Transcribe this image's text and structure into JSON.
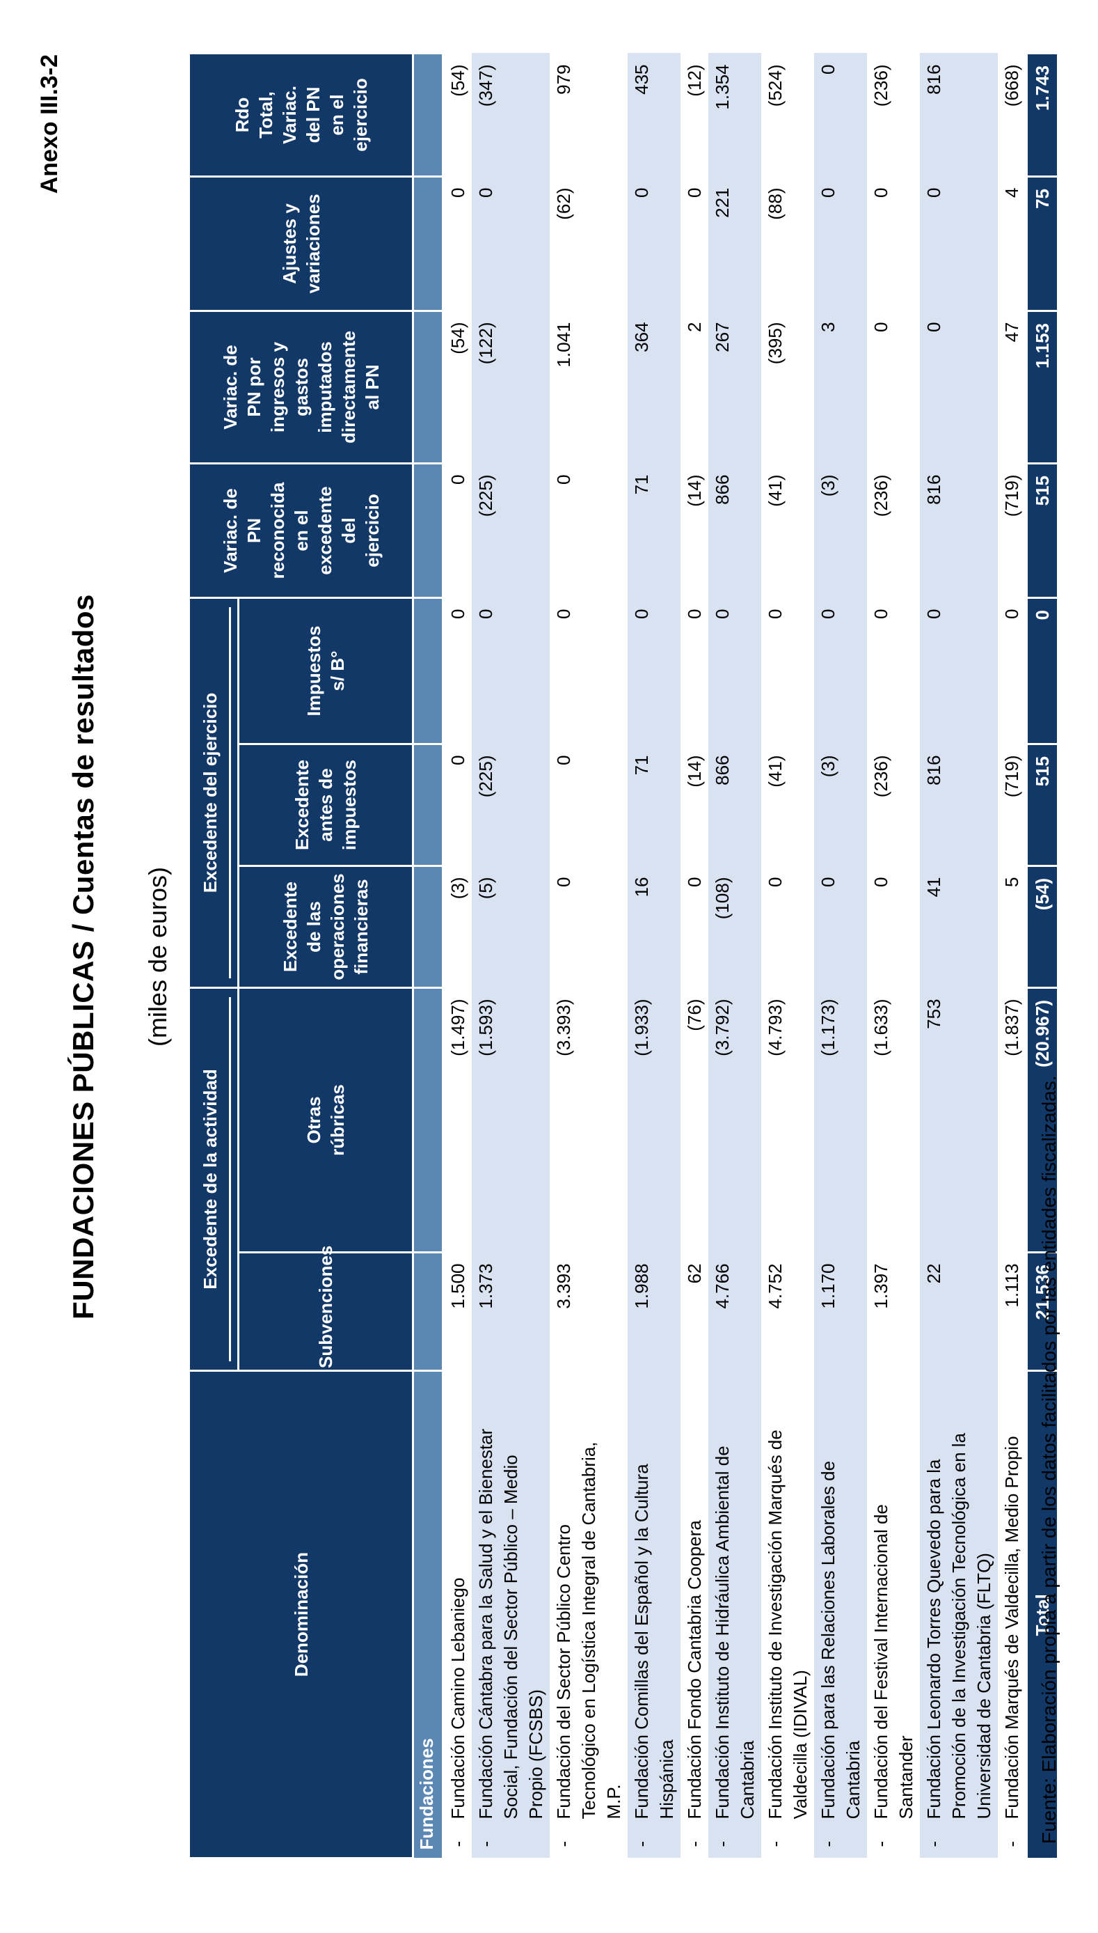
{
  "page": {
    "anexo": "Anexo III.3-2",
    "title": "FUNDACIONES PÚBLICAS  /  Cuentas de resultados",
    "subtitle": "(miles de euros)",
    "footer": "Fuente: Elaboración propia a partir de los datos facilitados por las entidades fiscalizadas.",
    "dash": "-"
  },
  "colors": {
    "header_navy": "#123867",
    "section_blue": "#5b87b5",
    "stripe_light_blue": "#d9e2f1",
    "text_white": "#ffffff",
    "text_black": "#000000"
  },
  "table": {
    "section_label": "Fundaciones",
    "header": {
      "denominacion": "Denominación",
      "grupo_actividad": "Excedente de la actividad",
      "grupo_ejercicio": "Excedente del ejercicio",
      "subvenciones": "Subvenciones",
      "otras_rubricas": "Otras\nrúbricas",
      "exc_op_financieras": "Excedente\nde las\noperaciones\nfinancieras",
      "exc_antes_impuestos": "Excedente\nantes de\nimpuestos",
      "impuestos": "Impuestos\ns/ B°",
      "variac_reconocida": "Variac. de\nPN\nreconocida\nen el\nexcedente\ndel\nejercicio",
      "variac_ingresos": "Variac. de\nPN por\ningresos y\ngastos\nimputados\ndirectamente\nal PN",
      "ajustes": "Ajustes y\nvariaciones",
      "rdo_total": "Rdo\nTotal,\nVariac.\ndel PN\nen el\nejercicio"
    },
    "rows": [
      {
        "name": "Fundación Camino Lebaniego",
        "values": [
          "1.500",
          "(1.497)",
          "(3)",
          "0",
          "0",
          "0",
          "(54)",
          "0",
          "(54)"
        ]
      },
      {
        "name": "Fundación Cántabra para la Salud y el Bienestar\nSocial, Fundación del Sector Público – Medio\nPropio (FCSBS)",
        "values": [
          "1.373",
          "(1.593)",
          "(5)",
          "(225)",
          "0",
          "(225)",
          "(122)",
          "0",
          "(347)"
        ]
      },
      {
        "name": "Fundación del Sector Público Centro\nTecnológico en Logística Integral de Cantabria,\nM.P.",
        "values": [
          "3.393",
          "(3.393)",
          "0",
          "0",
          "0",
          "0",
          "1.041",
          "(62)",
          "979"
        ]
      },
      {
        "name": "Fundación Comillas del Español y la Cultura\nHispánica",
        "values": [
          "1.988",
          "(1.933)",
          "16",
          "71",
          "0",
          "71",
          "364",
          "0",
          "435"
        ]
      },
      {
        "name": "Fundación Fondo Cantabria Coopera",
        "values": [
          "62",
          "(76)",
          "0",
          "(14)",
          "0",
          "(14)",
          "2",
          "0",
          "(12)"
        ]
      },
      {
        "name": "Fundación Instituto de Hidráulica Ambiental de\nCantabria",
        "values": [
          "4.766",
          "(3.792)",
          "(108)",
          "866",
          "0",
          "866",
          "267",
          "221",
          "1.354"
        ]
      },
      {
        "name": "Fundación Instituto de Investigación Marqués de\nValdecilla (IDIVAL)",
        "values": [
          "4.752",
          "(4.793)",
          "0",
          "(41)",
          "0",
          "(41)",
          "(395)",
          "(88)",
          "(524)"
        ]
      },
      {
        "name": "Fundación para las Relaciones Laborales de\nCantabria",
        "values": [
          "1.170",
          "(1.173)",
          "0",
          "(3)",
          "0",
          "(3)",
          "3",
          "0",
          "0"
        ]
      },
      {
        "name": "Fundación del Festival Internacional de\nSantander",
        "values": [
          "1.397",
          "(1.633)",
          "0",
          "(236)",
          "0",
          "(236)",
          "0",
          "0",
          "(236)"
        ]
      },
      {
        "name": "Fundación Leonardo Torres Quevedo para la\nPromoción de la Investigación Tecnológica en la\nUniversidad de Cantabria (FLTQ)",
        "values": [
          "22",
          "753",
          "41",
          "816",
          "0",
          "816",
          "0",
          "0",
          "816"
        ]
      },
      {
        "name": "Fundación Marqués de Valdecilla, Medio Propio",
        "values": [
          "1.113",
          "(1.837)",
          "5",
          "(719)",
          "0",
          "(719)",
          "47",
          "4",
          "(668)"
        ]
      }
    ],
    "total": {
      "label": "Total",
      "values": [
        "21.536",
        "(20.967)",
        "(54)",
        "515",
        "0",
        "515",
        "1.153",
        "75",
        "1.743"
      ]
    }
  }
}
